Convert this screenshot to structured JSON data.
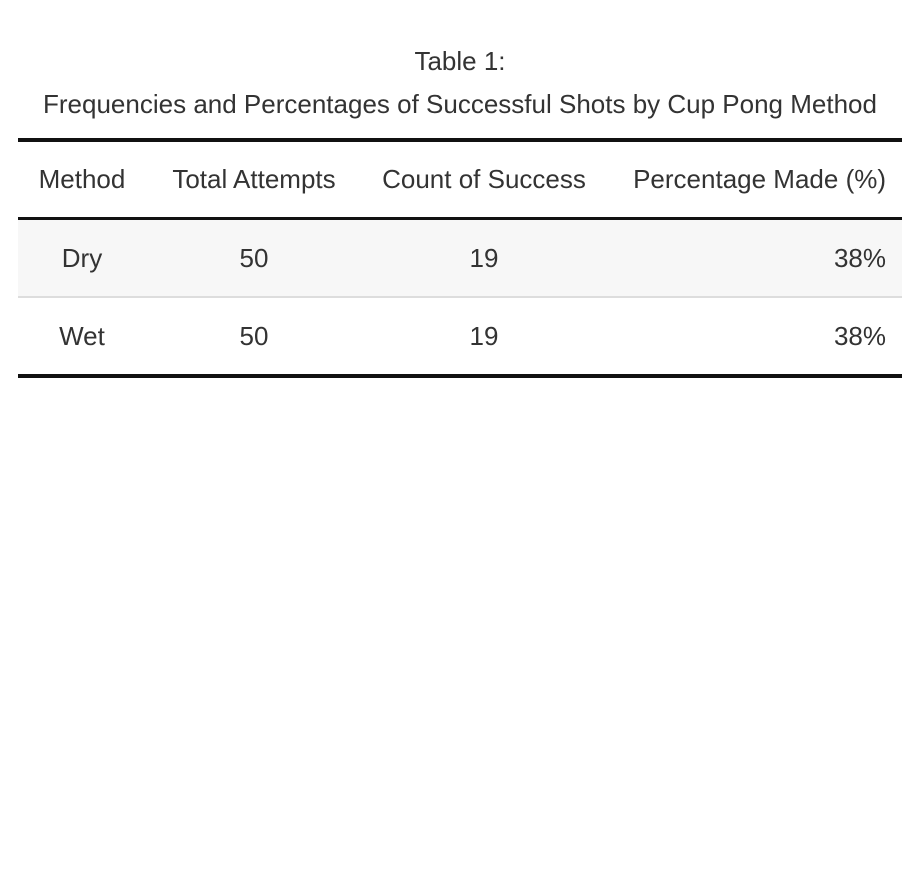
{
  "caption": {
    "line1": "Table 1:",
    "line2": "Frequencies and Percentages of Successful Shots by Cup Pong Method"
  },
  "table": {
    "headers": [
      "Method",
      "Total Attempts",
      "Count of Success",
      "Percentage Made (%)"
    ],
    "rows": [
      [
        "Dry",
        "50",
        "19",
        "38%"
      ],
      [
        "Wet",
        "50",
        "19",
        "38%"
      ]
    ]
  },
  "chart_data": {
    "type": "table",
    "title": "Frequencies and Percentages of Successful Shots by Cup Pong Method",
    "columns": [
      "Method",
      "Total Attempts",
      "Count of Success",
      "Percentage Made (%)"
    ],
    "rows": [
      {
        "Method": "Dry",
        "Total Attempts": 50,
        "Count of Success": 19,
        "Percentage Made (%)": 38
      },
      {
        "Method": "Wet",
        "Total Attempts": 50,
        "Count of Success": 19,
        "Percentage Made (%)": 38
      }
    ]
  }
}
